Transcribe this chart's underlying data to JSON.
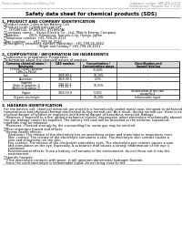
{
  "title": "Safety data sheet for chemical products (SDS)",
  "header_left": "Product name: Lithium Ion Battery Cell",
  "header_right_1": "Substance number: SBR-049-000/10",
  "header_right_2": "Establishment / Revision: Dec.7.2010",
  "section1_title": "1. PRODUCT AND COMPANY IDENTIFICATION",
  "section1_lines": [
    "  ・Product name: Lithium Ion Battery Cell",
    "  ・Product code: Cylindrical-type cell",
    "       (SY18650U, SY18650U, SY18650A)",
    "  ・Company name:    Sanyo Electric Co., Ltd., Mobile Energy Company",
    "  ・Address:         2001, Kamimura, Sumoto-City, Hyogo, Japan",
    "  ・Telephone number: +81-799-26-4111",
    "  ・Fax number:       +81-799-26-4123",
    "  ・Emergency telephone number (Weekday): +81-799-26-2662",
    "                                    (Night and holiday): +81-799-26-2101"
  ],
  "section2_title": "2. COMPOSITION / INFORMATION ON INGREDIENTS",
  "section2_intro": "  ・Substance or preparation: Preparation",
  "section2_sub": "  ・Information about the chemical nature of product:",
  "table_headers": [
    "Common chemical name /\nSynonyms",
    "CAS number",
    "Concentration /\nConcentration range",
    "Classification and\nhazard labeling"
  ],
  "table_rows": [
    [
      "Lithium cobalt tantalate\n(LiMn-Co-PbO4)",
      "-",
      "30-60%",
      "-"
    ],
    [
      "Iron",
      "7439-89-6",
      "10-20%",
      "-"
    ],
    [
      "Aluminum",
      "7429-90-5",
      "2-5%",
      "-"
    ],
    [
      "Graphite\n(flake of graphite-1)\n(Artificial graphite-1)",
      "7782-42-5\n7782-42-5",
      "10-25%",
      "-"
    ],
    [
      "Copper",
      "7440-50-8",
      "5-15%",
      "Sensitization of the skin\ngroup No.2"
    ],
    [
      "Organic electrolyte",
      "-",
      "10-20%",
      "Inflammable liquid"
    ]
  ],
  "section3_title": "3. HAZARDS IDENTIFICATION",
  "section3_para1": "  For the battery cell, chemical materials are stored in a hermetically sealed metal case, designed to withstand\n  temperatures and physical-thermal-mechanical during normal use. As a result, during normal use, there is no\n  physical danger of ignition or explosion and thermal danger of hazardous materials leakage.\n    However, if exposed to a fire, added mechanical shocks, decompose, when electrolyte mechanically abused,\n  the gas leakage cannot be expelled. The battery cell case will be breached at the extreme. hazardous\n  materials may be released.\n    Moreover, if heated strongly by the surrounding fire, some gas may be emitted.",
  "section3_bullet1": "  ・Most important hazard and effects:",
  "section3_health": "    Human health effects:",
  "section3_health_lines": [
    "      Inhalation: The release of the electrolyte has an anesthesia action and stimulates in respiratory tract.",
    "      Skin contact: The release of the electrolyte stimulates a skin. The electrolyte skin contact causes a",
    "      sore and stimulation on the skin.",
    "      Eye contact: The release of the electrolyte stimulates eyes. The electrolyte eye contact causes a sore",
    "      and stimulation on the eye. Especially, a substance that causes a strong inflammation of the eye is",
    "      contained.",
    "      Environmental effects: Since a battery cell remains in the environment, do not throw out it into the",
    "      environment."
  ],
  "section3_bullet2": "  ・Specific hazards:",
  "section3_specific_lines": [
    "    If the electrolyte contacts with water, it will generate detrimental hydrogen fluoride.",
    "    Since the used electrolyte is inflammable liquid, do not bring close to fire."
  ],
  "bg_color": "#ffffff",
  "text_color": "#000000",
  "line_color": "#000000",
  "gray_color": "#888888"
}
